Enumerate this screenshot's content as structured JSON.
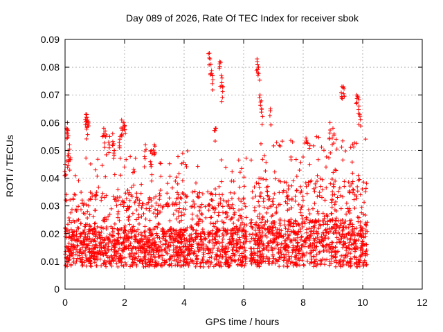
{
  "chart_data": {
    "type": "scatter",
    "title": "Day 089 of 2026, Rate Of TEC Index for receiver sbok",
    "xlabel": "GPS time / hours",
    "ylabel": "ROTI / TECUs",
    "xlim": [
      0,
      12
    ],
    "ylim": [
      0,
      0.09
    ],
    "x_ticks": [
      "0",
      "2",
      "4",
      "6",
      "8",
      "10",
      "12"
    ],
    "y_ticks": [
      "0",
      "0.01",
      "0.02",
      "0.03",
      "0.04",
      "0.05",
      "0.06",
      "0.07",
      "0.08",
      "0.09"
    ],
    "grid": true,
    "marker": "+",
    "color": "#ff0000",
    "x_data_range": [
      0,
      10.1
    ],
    "segments": [
      {
        "x": [
          0.0,
          0.05,
          0.08,
          0.1,
          0.12,
          0.15
        ],
        "y": [
          0.045,
          0.058,
          0.06,
          0.05,
          0.048,
          0.052
        ]
      },
      {
        "x": [
          0.7,
          0.72,
          0.75,
          0.73
        ],
        "y": [
          0.063,
          0.062,
          0.061,
          0.06
        ]
      },
      {
        "x": [
          1.3,
          1.35,
          1.5,
          1.6,
          1.65
        ],
        "y": [
          0.058,
          0.057,
          0.055,
          0.056,
          0.05
        ]
      },
      {
        "x": [
          1.9,
          1.95,
          2.0,
          1.85
        ],
        "y": [
          0.061,
          0.06,
          0.059,
          0.055
        ]
      },
      {
        "x": [
          2.7,
          2.9,
          3.0
        ],
        "y": [
          0.052,
          0.05,
          0.052
        ]
      },
      {
        "x": [
          4.85,
          4.9,
          4.95,
          5.2,
          5.25,
          5.3,
          5.05
        ],
        "y": [
          0.085,
          0.081,
          0.077,
          0.082,
          0.077,
          0.073,
          0.058
        ]
      },
      {
        "x": [
          6.45,
          6.5,
          6.55,
          6.6,
          6.9
        ],
        "y": [
          0.083,
          0.08,
          0.07,
          0.065,
          0.065
        ]
      },
      {
        "x": [
          8.9,
          9.0,
          9.3,
          9.35,
          9.8,
          9.85,
          9.9
        ],
        "y": [
          0.06,
          0.058,
          0.073,
          0.073,
          0.07,
          0.069,
          0.063
        ]
      }
    ],
    "dense_bands": [
      {
        "x_start": 0.0,
        "x_end": 6.1,
        "y_floor": 0.005,
        "y_core": [
          0.008,
          0.022
        ],
        "y_spread": 0.035
      },
      {
        "x_start": 6.2,
        "x_end": 10.15,
        "y_floor": 0.005,
        "y_core": [
          0.008,
          0.025
        ],
        "y_spread": 0.04
      }
    ]
  }
}
